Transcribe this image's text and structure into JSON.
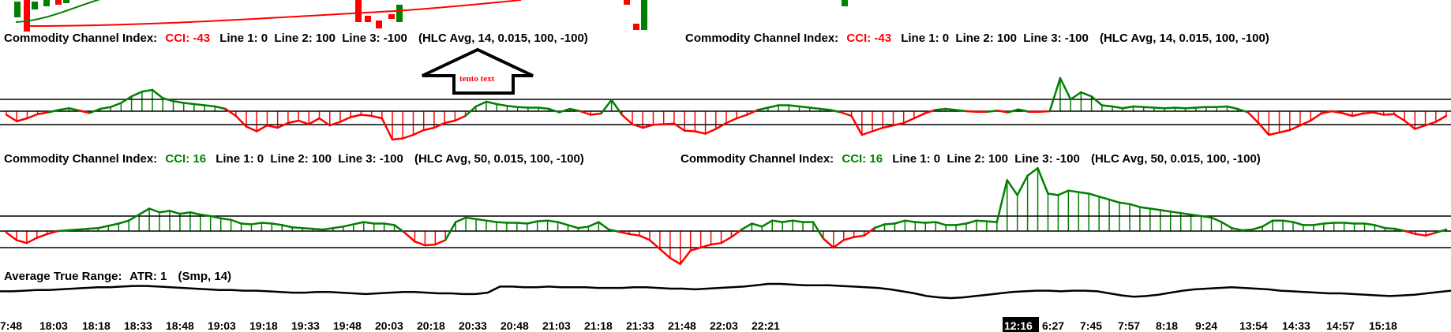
{
  "colors": {
    "bull": "#008000",
    "bear": "#ff0000",
    "line": "#000000",
    "bg": "#ffffff"
  },
  "chart_data": [
    {
      "type": "bar",
      "name": "price-panel-partial",
      "note_visible": "top price panel cut off; only candle fragments and a moving average visible"
    },
    {
      "type": "line",
      "indicator": "Commodity Channel Index",
      "legend": [
        {
          "label": "Commodity Channel Index:",
          "value": "CCI: -43",
          "color": "#ff0000",
          "lines": "Line 1: 0  Line 2: 100  Line 3: -100",
          "params": "(HLC Avg, 14, 0.015, 100, -100)"
        },
        {
          "label": "Commodity Channel Index:",
          "value": "CCI: -43",
          "color": "#ff0000",
          "lines": "Line 1: 0  Line 2: 100  Line 3: -100",
          "params": "(HLC Avg, 14, 0.015, 100, -100)"
        }
      ],
      "reference_lines": [
        0,
        100,
        -100
      ],
      "ylim": [
        -200,
        330
      ],
      "values": [
        -30,
        -85,
        -60,
        -25,
        -10,
        10,
        25,
        5,
        -15,
        20,
        35,
        70,
        125,
        165,
        180,
        110,
        85,
        70,
        60,
        50,
        40,
        20,
        -40,
        -130,
        -170,
        -120,
        -140,
        -100,
        -80,
        -110,
        -60,
        -120,
        -90,
        -50,
        -30,
        -40,
        -60,
        -240,
        -230,
        -200,
        -160,
        -140,
        -100,
        -80,
        -40,
        40,
        80,
        60,
        45,
        35,
        30,
        30,
        20,
        -10,
        20,
        0,
        -30,
        -20,
        95,
        -30,
        -110,
        -140,
        -115,
        -110,
        -105,
        -165,
        -170,
        -190,
        -150,
        -100,
        -60,
        -30,
        10,
        30,
        50,
        50,
        40,
        30,
        20,
        10,
        -10,
        -40,
        -200,
        -170,
        -140,
        -120,
        -100,
        -60,
        -20,
        10,
        20,
        10,
        0,
        -5,
        -5,
        5,
        -10,
        15,
        -5,
        -5,
        0,
        280,
        100,
        160,
        125,
        50,
        40,
        25,
        40,
        35,
        30,
        25,
        30,
        25,
        30,
        35,
        35,
        40,
        20,
        -10,
        -100,
        -200,
        -180,
        -160,
        -120,
        -80,
        -20,
        0,
        -15,
        -40,
        -20,
        -10,
        -30,
        -25,
        -80,
        -150,
        -120,
        -90,
        -40
      ]
    },
    {
      "type": "line",
      "indicator": "Commodity Channel Index",
      "legend": [
        {
          "label": "Commodity Channel Index:",
          "value": "CCI: 16",
          "color": "#008000",
          "lines": "Line 1: 0  Line 2: 100  Line 3: -100",
          "params": "(HLC Avg, 50, 0.015, 100, -100)"
        },
        {
          "label": "Commodity Channel Index:",
          "value": "CCI: 16",
          "color": "#008000",
          "lines": "Line 1: 0  Line 2: 100  Line 3: -100",
          "params": "(HLC Avg, 50, 0.015, 100, -100)"
        }
      ],
      "reference_lines": [
        0,
        100,
        -100
      ],
      "ylim": [
        -240,
        400
      ],
      "values": [
        -10,
        -60,
        -80,
        -45,
        -20,
        0,
        5,
        10,
        15,
        20,
        35,
        50,
        70,
        110,
        150,
        125,
        135,
        115,
        125,
        110,
        100,
        85,
        75,
        50,
        45,
        55,
        50,
        40,
        25,
        20,
        15,
        10,
        20,
        30,
        45,
        60,
        50,
        50,
        40,
        -10,
        -70,
        -95,
        -90,
        -60,
        60,
        90,
        80,
        70,
        60,
        55,
        55,
        50,
        65,
        70,
        60,
        40,
        20,
        30,
        60,
        10,
        -5,
        -20,
        -30,
        -60,
        -120,
        -180,
        -220,
        -130,
        -110,
        -90,
        -80,
        -40,
        10,
        50,
        30,
        70,
        60,
        70,
        60,
        60,
        -50,
        -110,
        -60,
        -40,
        -30,
        20,
        45,
        50,
        70,
        60,
        55,
        60,
        40,
        40,
        50,
        70,
        65,
        60,
        340,
        240,
        370,
        420,
        250,
        240,
        270,
        260,
        250,
        230,
        210,
        190,
        180,
        160,
        150,
        140,
        130,
        120,
        110,
        100,
        90,
        60,
        20,
        5,
        10,
        30,
        70,
        70,
        60,
        40,
        40,
        50,
        55,
        55,
        50,
        50,
        40,
        20,
        15,
        0,
        -20,
        -30,
        -10,
        10
      ]
    },
    {
      "type": "line",
      "indicator": "Average True Range",
      "legend": {
        "label": "Average True Range:",
        "value": "ATR: 1",
        "params": "(Smp, 14)"
      },
      "values": [
        1.05,
        1.05,
        1.1,
        1.15,
        1.15,
        1.2,
        1.25,
        1.3,
        1.35,
        1.35,
        1.4,
        1.45,
        1.45,
        1.4,
        1.35,
        1.3,
        1.25,
        1.2,
        1.15,
        1.15,
        1.1,
        1.1,
        1.05,
        1.0,
        0.95,
        0.95,
        1.0,
        1.0,
        0.95,
        0.9,
        0.85,
        0.9,
        0.95,
        1.0,
        1.0,
        0.95,
        0.9,
        0.9,
        0.85,
        0.85,
        0.95,
        1.4,
        1.4,
        1.35,
        1.35,
        1.4,
        1.35,
        1.35,
        1.35,
        1.3,
        1.3,
        1.3,
        1.35,
        1.35,
        1.3,
        1.25,
        1.25,
        1.2,
        1.25,
        1.3,
        1.35,
        1.4,
        1.5,
        1.6,
        1.6,
        1.55,
        1.5,
        1.5,
        1.5,
        1.45,
        1.4,
        1.35,
        1.3,
        1.2,
        1.05,
        0.9,
        0.7,
        0.6,
        0.55,
        0.6,
        0.7,
        0.8,
        0.9,
        1.0,
        1.05,
        1.1,
        1.1,
        1.05,
        1.1,
        1.1,
        1.05,
        0.9,
        0.75,
        0.65,
        0.7,
        0.8,
        0.95,
        1.1,
        1.2,
        1.25,
        1.3,
        1.35,
        1.3,
        1.25,
        1.2,
        1.1,
        1.05,
        1.0,
        0.95,
        0.9,
        0.9,
        0.85,
        0.8,
        0.75,
        0.7,
        0.75,
        0.8,
        0.9,
        1.0,
        1.1
      ]
    }
  ],
  "annotation": {
    "text": "tento text"
  },
  "x_axis": {
    "labels": [
      "7:48",
      "18:03",
      "18:18",
      "18:33",
      "18:48",
      "19:03",
      "19:18",
      "19:33",
      "19:48",
      "20:03",
      "20:18",
      "20:33",
      "20:48",
      "21:03",
      "21:18",
      "21:33",
      "21:48",
      "22:03",
      "22:21",
      "12:16",
      "6:27",
      "7:45",
      "7:57",
      "8:18",
      "9:24",
      "13:54",
      "14:33",
      "14:57",
      "15:18"
    ],
    "highlighted": "12:16"
  }
}
